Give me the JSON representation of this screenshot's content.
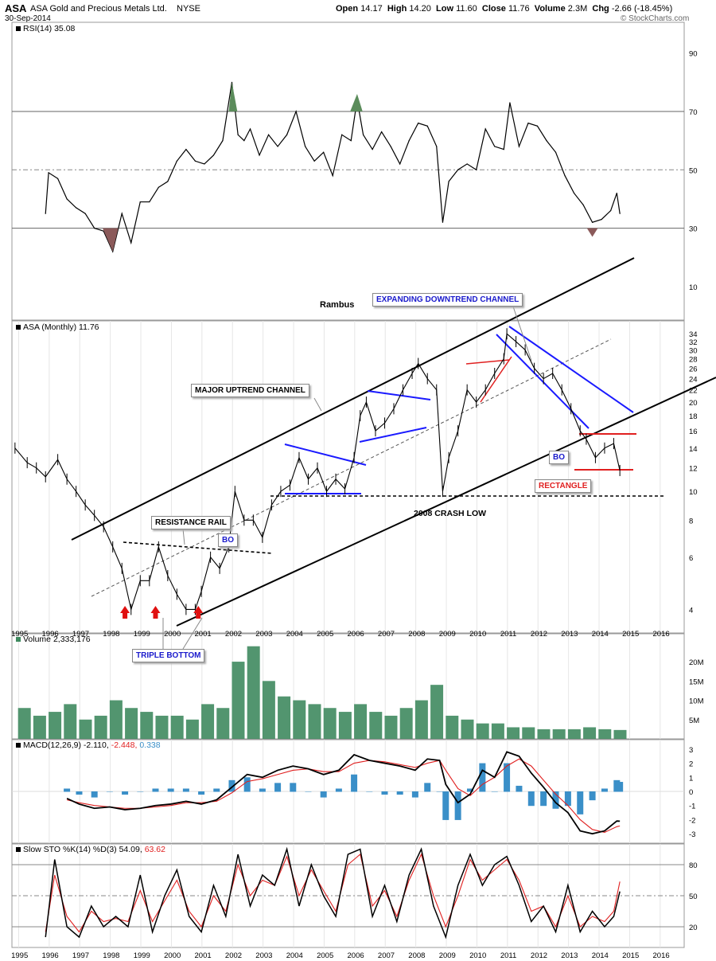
{
  "header": {
    "symbol": "ASA",
    "name": "ASA Gold and Precious Metals Ltd.",
    "exchange": "NYSE",
    "date": "30-Sep-2014",
    "open_label": "Open",
    "open": "14.17",
    "high_label": "High",
    "high": "14.20",
    "low_label": "Low",
    "low": "11.60",
    "close_label": "Close",
    "close": "11.76",
    "volume_label": "Volume",
    "volume": "2.3M",
    "chg_label": "Chg",
    "chg": "-2.66 (-18.45%)",
    "watermark": "© StockCharts.com"
  },
  "colors": {
    "price": "#000000",
    "volume": "#3f8a5f",
    "macd_hist": "#3a8fc8",
    "signal": "#e02020",
    "blue_trend": "#1a1aff",
    "red_trend": "#e02020",
    "rsi_up": "#5b8c5b",
    "rsi_down": "#8b5a5a",
    "stamp_blue": "#1a1acc"
  },
  "legends": {
    "rsi": "RSI(14) 35.08",
    "price": "ASA (Monthly) 11.76",
    "volume": "Volume 2,333,176",
    "macd_a": "MACD(12,26,9) -2.110,",
    "macd_b": "-2.448,",
    "macd_c": "0.338",
    "sto_a": "Slow STO %K(14) %D(3) 54.09,",
    "sto_b": "63.62"
  },
  "annotations": {
    "rambus": "Rambus",
    "expanding": "EXPANDING DOWNTREND CHANNEL",
    "major": "MAJOR UPTREND CHANNEL",
    "resistance": "RESISTANCE RAIL",
    "bo1": "BO",
    "bo2": "BO",
    "rectangle": "RECTANGLE",
    "crash": "2008 CRASH LOW",
    "triple": "TRIPLE BOTTOM"
  },
  "chart_data": [
    {
      "type": "line",
      "title": "RSI(14) 35.08",
      "x": [
        1995.9,
        1996.0,
        1996.3,
        1996.6,
        1996.9,
        1997.2,
        1997.5,
        1997.8,
        1998.1,
        1998.4,
        1998.7,
        1999.0,
        1999.3,
        1999.6,
        1999.9,
        2000.2,
        2000.5,
        2000.8,
        2001.1,
        2001.4,
        2001.7,
        2002.0,
        2002.2,
        2002.4,
        2002.6,
        2002.9,
        2003.2,
        2003.5,
        2003.8,
        2004.1,
        2004.4,
        2004.7,
        2005.0,
        2005.3,
        2005.6,
        2005.9,
        2006.1,
        2006.3,
        2006.6,
        2006.9,
        2007.2,
        2007.5,
        2007.8,
        2008.1,
        2008.4,
        2008.7,
        2008.9,
        2009.1,
        2009.4,
        2009.7,
        2010.0,
        2010.3,
        2010.6,
        2010.9,
        2011.1,
        2011.4,
        2011.7,
        2012.0,
        2012.3,
        2012.6,
        2012.9,
        2013.2,
        2013.5,
        2013.8,
        2014.1,
        2014.4,
        2014.6,
        2014.7
      ],
      "values": [
        35,
        49,
        47,
        40,
        37,
        35,
        30,
        29,
        22,
        35,
        25,
        39,
        39,
        44,
        46,
        53,
        57,
        53,
        52,
        55,
        60,
        80,
        62,
        60,
        64,
        55,
        62,
        58,
        62,
        70,
        58,
        53,
        56,
        48,
        62,
        60,
        74,
        62,
        57,
        63,
        58,
        52,
        60,
        66,
        65,
        58,
        32,
        46,
        50,
        52,
        50,
        64,
        58,
        57,
        73,
        58,
        66,
        65,
        60,
        56,
        48,
        42,
        38,
        32,
        33,
        36,
        42,
        35
      ],
      "ylim": [
        0,
        100
      ],
      "yticks": [
        10,
        30,
        50,
        70,
        90
      ],
      "reference_lines": [
        30,
        50,
        70
      ]
    },
    {
      "type": "line",
      "title": "ASA (Monthly) 11.76",
      "x": [
        1994.9,
        1995.3,
        1995.6,
        1995.9,
        1996.3,
        1996.6,
        1996.9,
        1997.2,
        1997.5,
        1997.8,
        1998.1,
        1998.4,
        1998.7,
        1999.0,
        1999.3,
        1999.6,
        1999.9,
        2000.2,
        2000.5,
        2000.8,
        2001.0,
        2001.3,
        2001.6,
        2001.9,
        2002.1,
        2002.4,
        2002.7,
        2003.0,
        2003.3,
        2003.6,
        2003.9,
        2004.2,
        2004.5,
        2004.8,
        2005.1,
        2005.4,
        2005.7,
        2006.0,
        2006.2,
        2006.4,
        2006.7,
        2007.0,
        2007.3,
        2007.6,
        2007.9,
        2008.1,
        2008.4,
        2008.7,
        2008.9,
        2009.1,
        2009.4,
        2009.7,
        2010.0,
        2010.3,
        2010.6,
        2010.9,
        2011.0,
        2011.3,
        2011.6,
        2011.9,
        2012.2,
        2012.5,
        2012.8,
        2013.1,
        2013.4,
        2013.6,
        2013.9,
        2014.2,
        2014.5,
        2014.7
      ],
      "values": [
        14,
        12.5,
        12,
        11.2,
        12.8,
        11,
        10,
        9,
        8.3,
        7.6,
        6.5,
        5.5,
        4,
        5,
        5,
        6.5,
        5.2,
        4.5,
        4,
        4,
        4.6,
        6,
        5.5,
        6.5,
        10,
        8,
        8,
        7,
        9,
        10,
        10.5,
        13,
        11,
        12,
        10,
        11,
        10.2,
        13,
        18,
        20,
        16,
        17,
        19,
        22,
        25,
        27,
        24,
        22,
        10,
        13,
        16,
        22,
        20,
        22,
        25,
        28,
        34,
        32,
        30,
        26,
        24,
        25,
        22,
        19,
        16,
        15,
        13,
        14,
        14.5,
        11.76
      ],
      "ylim": [
        3.5,
        36
      ],
      "log_scale": true,
      "yticks": [
        4,
        6,
        8,
        10,
        12,
        14,
        16,
        18,
        20,
        22,
        24,
        26,
        28,
        30,
        32,
        34
      ],
      "horizontal_line": 9.4
    },
    {
      "type": "bar",
      "title": "Volume 2,333,176",
      "x": [
        1995.0,
        1995.5,
        1996.0,
        1996.5,
        1997.0,
        1997.5,
        1998.0,
        1998.5,
        1999.0,
        1999.5,
        2000.0,
        2000.5,
        2001.0,
        2001.5,
        2002.0,
        2002.5,
        2003.0,
        2003.5,
        2004.0,
        2004.5,
        2005.0,
        2005.5,
        2006.0,
        2006.5,
        2007.0,
        2007.5,
        2008.0,
        2008.5,
        2009.0,
        2009.5,
        2010.0,
        2010.5,
        2011.0,
        2011.5,
        2012.0,
        2012.5,
        2013.0,
        2013.5,
        2014.0,
        2014.5
      ],
      "values": [
        8,
        6,
        7,
        9,
        5,
        6,
        10,
        8,
        7,
        6,
        6,
        5,
        9,
        8,
        20,
        24,
        15,
        11,
        10,
        9,
        8,
        7,
        9,
        7,
        6,
        8,
        10,
        14,
        6,
        5,
        4,
        4,
        3,
        3,
        2.5,
        2.5,
        2.5,
        3,
        2.5,
        2.3
      ],
      "ylim": [
        0,
        26
      ],
      "yticks": [
        "5M",
        "10M",
        "15M",
        "20M"
      ]
    },
    {
      "type": "line",
      "title": "MACD(12,26,9)",
      "x": [
        1996.6,
        1997.0,
        1997.5,
        1998.0,
        1998.5,
        1999.0,
        1999.5,
        2000.0,
        2000.5,
        2001.0,
        2001.5,
        2002.0,
        2002.5,
        2003.0,
        2003.5,
        2004.0,
        2004.5,
        2005.0,
        2005.5,
        2006.0,
        2006.5,
        2007.0,
        2007.5,
        2008.0,
        2008.4,
        2008.8,
        2009.0,
        2009.4,
        2009.8,
        2010.2,
        2010.6,
        2011.0,
        2011.4,
        2011.8,
        2012.2,
        2012.6,
        2013.0,
        2013.4,
        2013.8,
        2014.2,
        2014.6,
        2014.7
      ],
      "series": [
        {
          "name": "MACD",
          "values": [
            -0.5,
            -0.9,
            -1.2,
            -1.1,
            -1.3,
            -1.2,
            -1.0,
            -0.9,
            -0.7,
            -0.9,
            -0.6,
            0.3,
            1.2,
            1.0,
            1.5,
            1.8,
            1.6,
            1.2,
            1.5,
            2.6,
            2.2,
            2.0,
            1.8,
            1.5,
            2.3,
            2.2,
            0.5,
            -0.8,
            -0.2,
            1.5,
            1.0,
            2.8,
            2.5,
            1.3,
            0.3,
            -0.8,
            -1.5,
            -2.8,
            -3.0,
            -2.8,
            -2.1,
            -2.11
          ]
        },
        {
          "name": "Signal",
          "values": [
            -0.6,
            -0.8,
            -1.0,
            -1.1,
            -1.2,
            -1.2,
            -1.1,
            -1.0,
            -0.8,
            -0.8,
            -0.7,
            -0.1,
            0.7,
            0.9,
            1.2,
            1.5,
            1.6,
            1.4,
            1.4,
            2.0,
            2.2,
            2.1,
            1.9,
            1.7,
            2.0,
            2.2,
            1.5,
            0.2,
            -0.3,
            0.5,
            1.0,
            1.8,
            2.3,
            1.8,
            0.8,
            -0.2,
            -1.0,
            -2.0,
            -2.7,
            -2.9,
            -2.5,
            -2.448
          ]
        }
      ],
      "ylim": [
        -3.5,
        3.5
      ],
      "yticks": [
        -3,
        -2,
        -1,
        0,
        1,
        2,
        3
      ]
    },
    {
      "type": "line",
      "title": "Slow STO %K(14) %D(3)",
      "x": [
        1995.9,
        1996.2,
        1996.6,
        1997.0,
        1997.4,
        1997.8,
        1998.2,
        1998.6,
        1999.0,
        1999.4,
        1999.8,
        2000.2,
        2000.6,
        2001.0,
        2001.4,
        2001.8,
        2002.2,
        2002.6,
        2003.0,
        2003.4,
        2003.8,
        2004.2,
        2004.6,
        2005.0,
        2005.4,
        2005.8,
        2006.2,
        2006.6,
        2007.0,
        2007.4,
        2007.8,
        2008.2,
        2008.6,
        2009.0,
        2009.4,
        2009.8,
        2010.2,
        2010.6,
        2011.0,
        2011.4,
        2011.8,
        2012.2,
        2012.6,
        2013.0,
        2013.4,
        2013.8,
        2014.2,
        2014.5,
        2014.7
      ],
      "series": [
        {
          "name": "%K",
          "values": [
            10,
            85,
            20,
            10,
            40,
            20,
            30,
            20,
            70,
            15,
            50,
            75,
            30,
            15,
            60,
            30,
            90,
            40,
            70,
            60,
            95,
            40,
            80,
            50,
            30,
            90,
            95,
            30,
            60,
            25,
            70,
            95,
            40,
            10,
            60,
            90,
            60,
            80,
            88,
            60,
            25,
            40,
            15,
            60,
            15,
            35,
            20,
            30,
            54.09
          ]
        },
        {
          "name": "%D",
          "values": [
            15,
            70,
            30,
            15,
            35,
            25,
            28,
            25,
            55,
            25,
            45,
            65,
            35,
            20,
            50,
            35,
            80,
            50,
            65,
            60,
            88,
            50,
            75,
            55,
            35,
            80,
            90,
            40,
            55,
            30,
            65,
            90,
            50,
            20,
            50,
            85,
            65,
            75,
            85,
            65,
            35,
            40,
            20,
            50,
            20,
            30,
            25,
            35,
            63.62
          ]
        }
      ],
      "ylim": [
        0,
        100
      ],
      "yticks": [
        20,
        50,
        80
      ]
    }
  ],
  "x_axis": {
    "years": [
      "1995",
      "1996",
      "1997",
      "1998",
      "1999",
      "2000",
      "2001",
      "2002",
      "2003",
      "2004",
      "2005",
      "2006",
      "2007",
      "2008",
      "2009",
      "2010",
      "2011",
      "2012",
      "2013",
      "2014",
      "2015",
      "2016"
    ]
  }
}
